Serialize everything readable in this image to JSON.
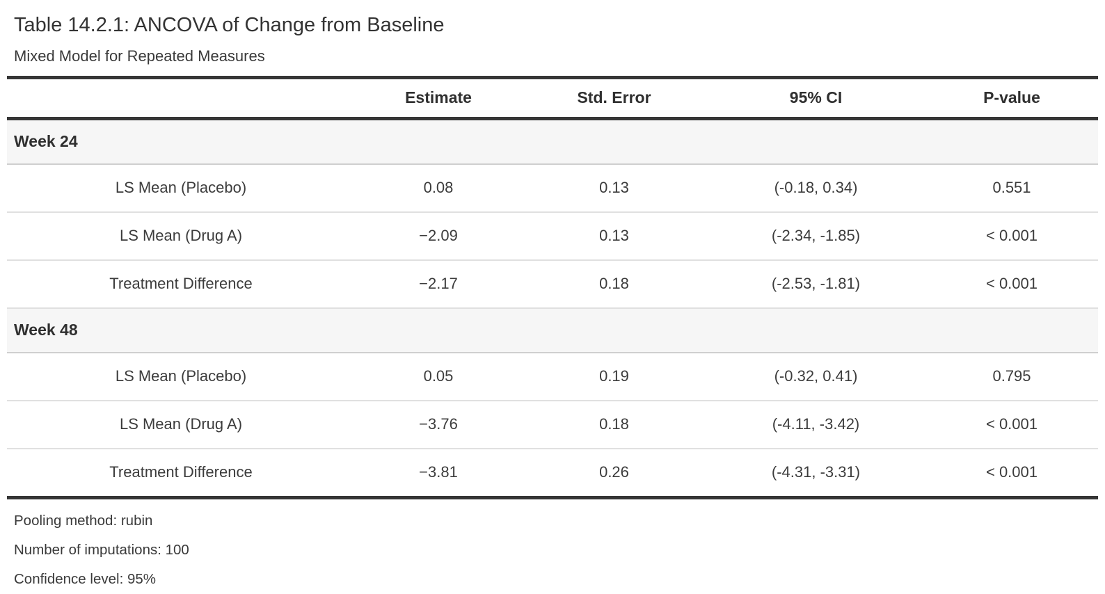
{
  "title": "Table 14.2.1: ANCOVA of Change from Baseline",
  "subtitle": "Mixed Model for Repeated Measures",
  "colors": {
    "heavy_rule": "#363636",
    "group_row_background": "#f6f6f6",
    "group_row_border": "#cfcfcf",
    "body_row_border": "#e0e0e0",
    "text": "#333333"
  },
  "table": {
    "columns": {
      "stub": "",
      "estimate": "Estimate",
      "std_error": "Std. Error",
      "ci": "95% CI",
      "p_value": "P-value"
    },
    "groups": [
      {
        "label": "Week 24",
        "rows": [
          {
            "label": "LS Mean (Placebo)",
            "estimate": "0.08",
            "std_error": "0.13",
            "ci": "(-0.18, 0.34)",
            "p_value": "0.551"
          },
          {
            "label": "LS Mean (Drug A)",
            "estimate": "−2.09",
            "std_error": "0.13",
            "ci": "(-2.34, -1.85)",
            "p_value": "< 0.001"
          },
          {
            "label": "Treatment Difference",
            "estimate": "−2.17",
            "std_error": "0.18",
            "ci": "(-2.53, -1.81)",
            "p_value": "< 0.001"
          }
        ]
      },
      {
        "label": "Week 48",
        "rows": [
          {
            "label": "LS Mean (Placebo)",
            "estimate": "0.05",
            "std_error": "0.19",
            "ci": "(-0.32, 0.41)",
            "p_value": "0.795"
          },
          {
            "label": "LS Mean (Drug A)",
            "estimate": "−3.76",
            "std_error": "0.18",
            "ci": "(-4.11, -3.42)",
            "p_value": "< 0.001"
          },
          {
            "label": "Treatment Difference",
            "estimate": "−3.81",
            "std_error": "0.26",
            "ci": "(-4.31, -3.31)",
            "p_value": "< 0.001"
          }
        ]
      }
    ]
  },
  "footnotes": [
    "Pooling method: rubin",
    "Number of imputations: 100",
    "Confidence level: 95%"
  ]
}
